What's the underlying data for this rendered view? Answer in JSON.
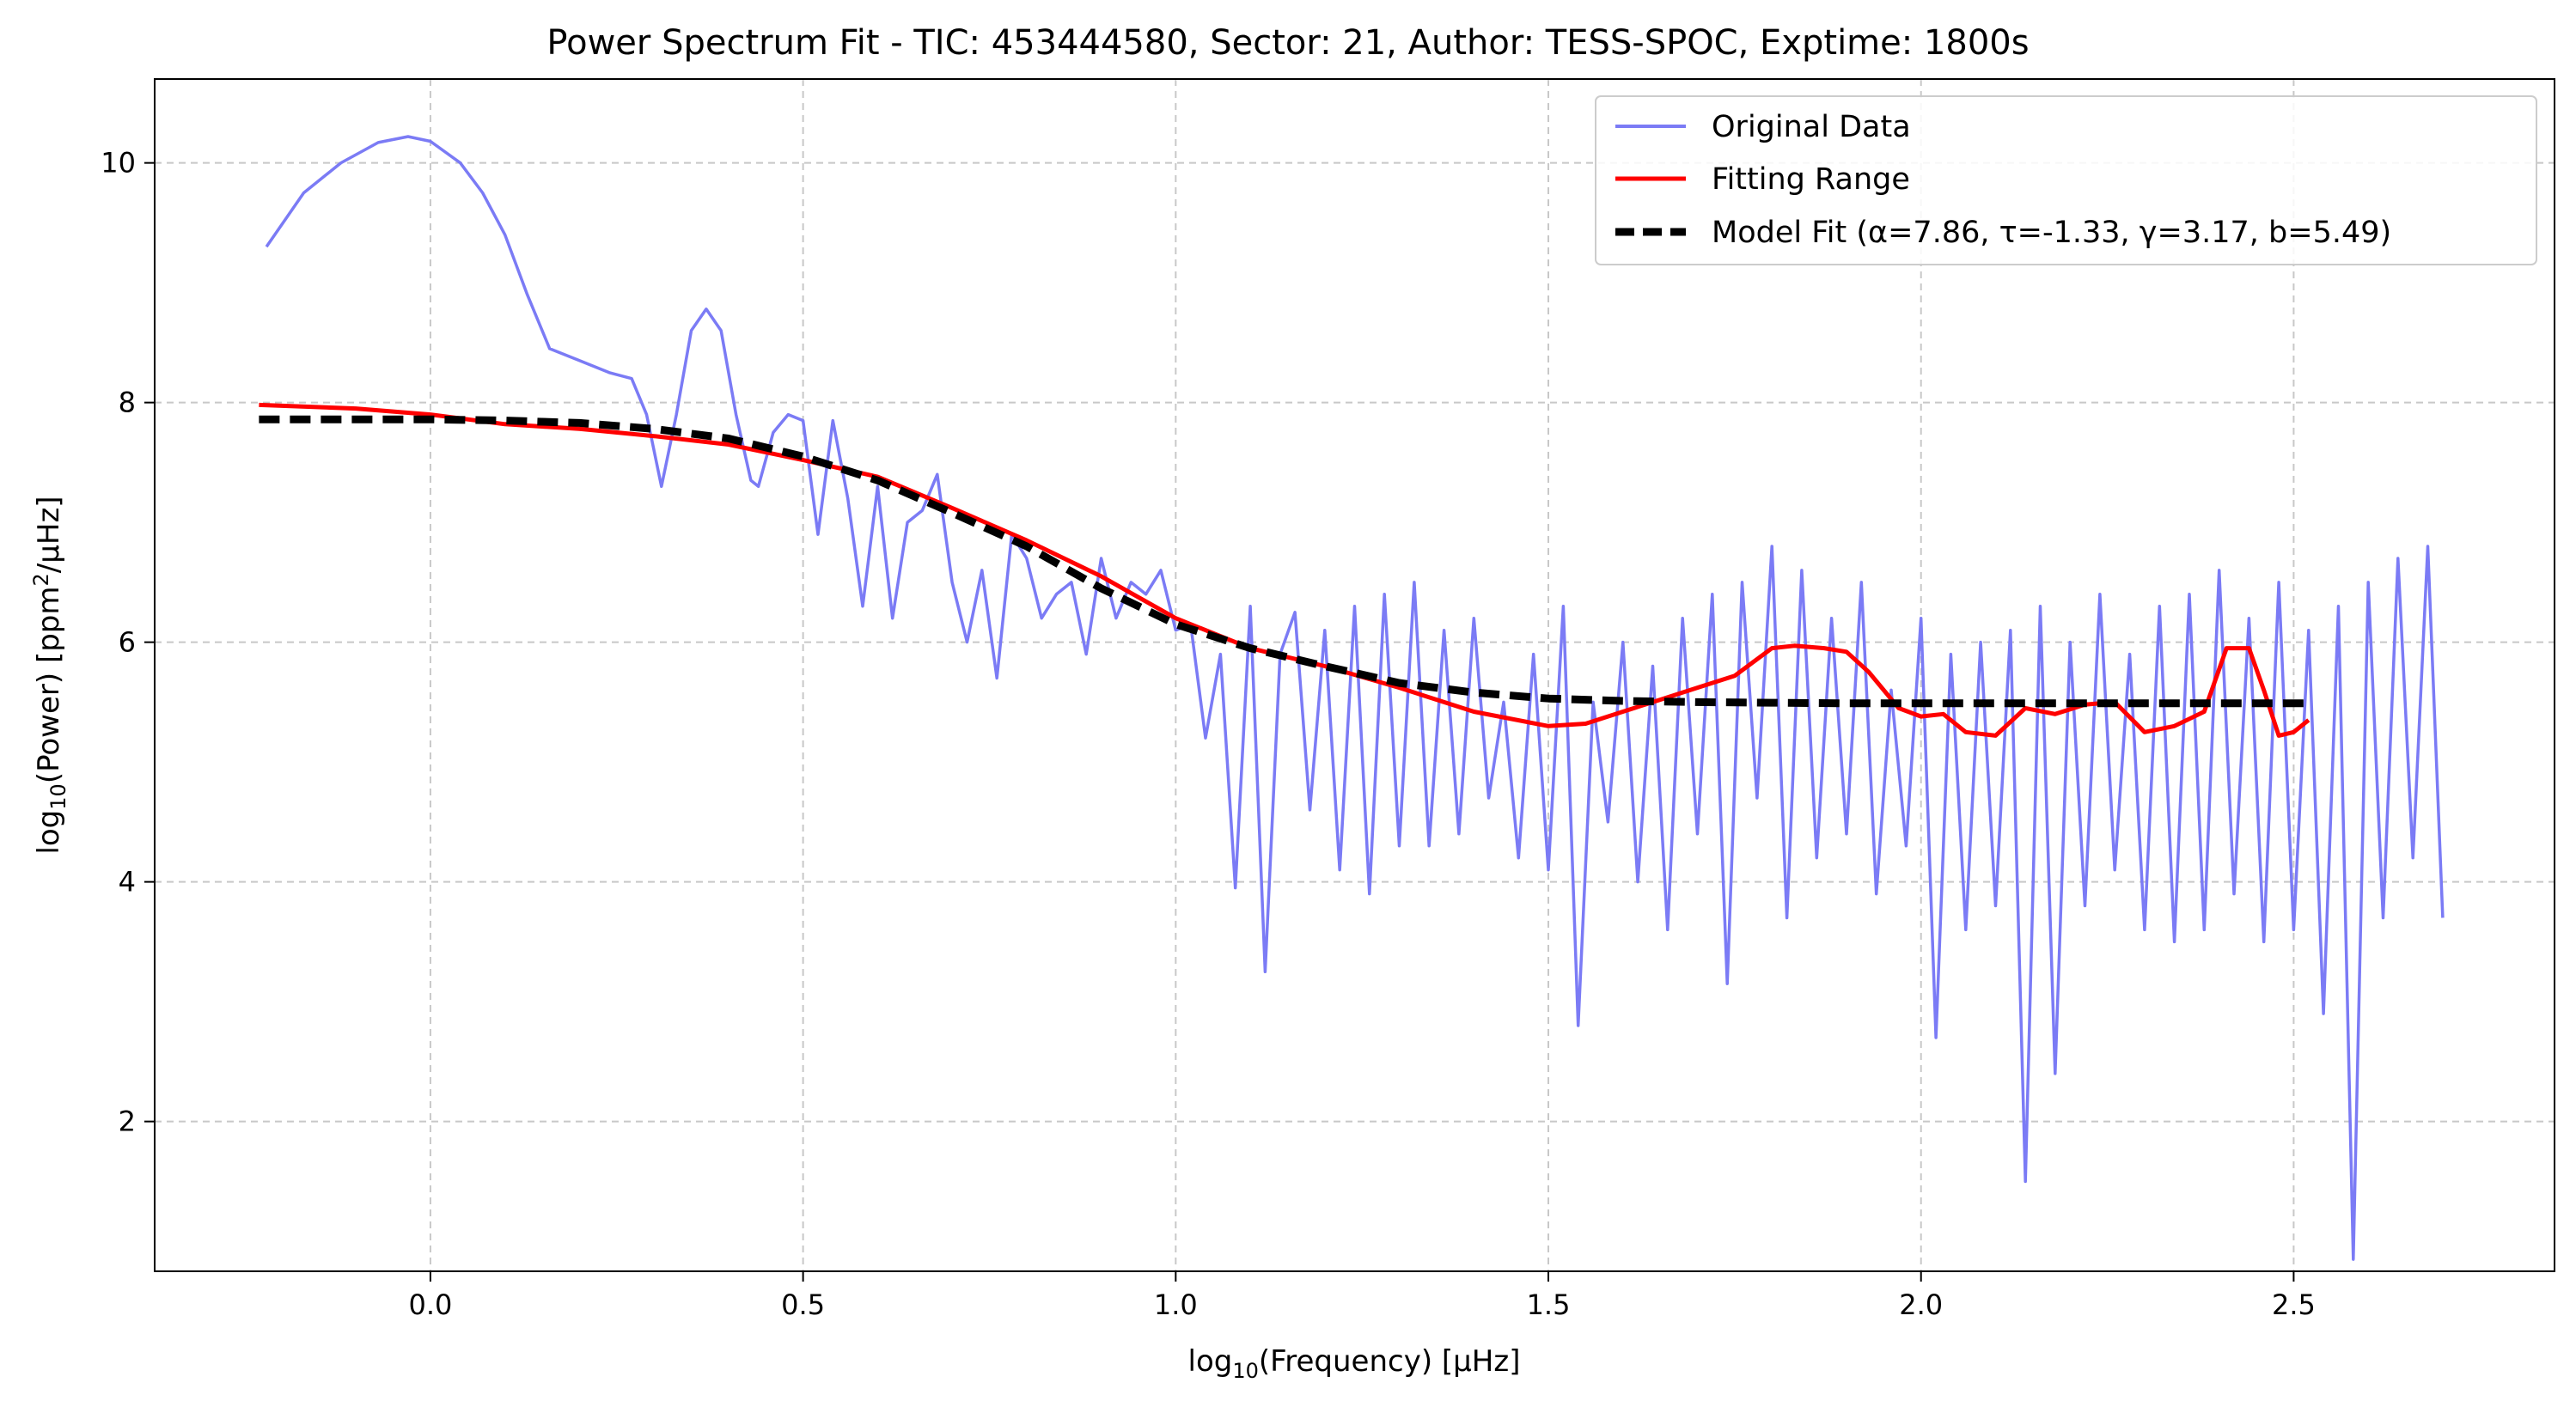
{
  "chart_data": {
    "type": "line",
    "title": "Power Spectrum Fit - TIC: 453444580, Sector: 21, Author: TESS-SPOC, Exptime: 1800s",
    "xlabel_main": "log",
    "xlabel_sub": "10",
    "xlabel_rest": "(Frequency) [μHz]",
    "ylabel_main": "log",
    "ylabel_sub": "10",
    "ylabel_mid": "(Power) [ppm",
    "ylabel_sup": "2",
    "ylabel_rest": "/μHz]",
    "xlim": [
      -0.37,
      2.85
    ],
    "ylim": [
      0.75,
      10.7
    ],
    "xticks": [
      0.0,
      0.5,
      1.0,
      1.5,
      2.0,
      2.5
    ],
    "xtick_labels": [
      "0.0",
      "0.5",
      "1.0",
      "1.5",
      "2.0",
      "2.5"
    ],
    "yticks": [
      2,
      4,
      6,
      8,
      10
    ],
    "ytick_labels": [
      "2",
      "4",
      "6",
      "8",
      "10"
    ],
    "grid": true,
    "legend_position": "top-right",
    "series": [
      {
        "name": "Original Data",
        "color": "#7b7bf5",
        "style": "solid",
        "x": [
          -0.22,
          -0.17,
          -0.12,
          -0.07,
          -0.03,
          0.0,
          0.04,
          0.07,
          0.1,
          0.13,
          0.16,
          0.2,
          0.24,
          0.27,
          0.29,
          0.31,
          0.33,
          0.35,
          0.37,
          0.39,
          0.41,
          0.43,
          0.44,
          0.46,
          0.48,
          0.5,
          0.52,
          0.54,
          0.56,
          0.58,
          0.6,
          0.62,
          0.64,
          0.66,
          0.68,
          0.7,
          0.72,
          0.74,
          0.76,
          0.78,
          0.8,
          0.82,
          0.84,
          0.86,
          0.88,
          0.9,
          0.92,
          0.94,
          0.96,
          0.98,
          1.0,
          1.02,
          1.04,
          1.06,
          1.08,
          1.1,
          1.12,
          1.14,
          1.16,
          1.18,
          1.2,
          1.22,
          1.24,
          1.26,
          1.28,
          1.3,
          1.32,
          1.34,
          1.36,
          1.38,
          1.4,
          1.42,
          1.44,
          1.46,
          1.48,
          1.5,
          1.52,
          1.54,
          1.56,
          1.58,
          1.6,
          1.62,
          1.64,
          1.66,
          1.68,
          1.7,
          1.72,
          1.74,
          1.76,
          1.78,
          1.8,
          1.82,
          1.84,
          1.86,
          1.88,
          1.9,
          1.92,
          1.94,
          1.96,
          1.98,
          2.0,
          2.02,
          2.04,
          2.06,
          2.08,
          2.1,
          2.12,
          2.14,
          2.16,
          2.18,
          2.2,
          2.22,
          2.24,
          2.26,
          2.28,
          2.3,
          2.32,
          2.34,
          2.36,
          2.38,
          2.4,
          2.42,
          2.44,
          2.46,
          2.48,
          2.5,
          2.52,
          2.54,
          2.56,
          2.58,
          2.6,
          2.62,
          2.64,
          2.66,
          2.68,
          2.7
        ],
        "y": [
          9.3,
          9.75,
          10.0,
          10.17,
          10.22,
          10.18,
          10.0,
          9.75,
          9.4,
          8.9,
          8.45,
          8.35,
          8.25,
          8.2,
          7.9,
          7.3,
          7.9,
          8.6,
          8.78,
          8.6,
          7.9,
          7.35,
          7.3,
          7.75,
          7.9,
          7.85,
          6.9,
          7.85,
          7.2,
          6.3,
          7.3,
          6.2,
          7.0,
          7.1,
          7.4,
          6.5,
          6.0,
          6.6,
          5.7,
          6.9,
          6.7,
          6.2,
          6.4,
          6.5,
          5.9,
          6.7,
          6.2,
          6.5,
          6.4,
          6.6,
          6.1,
          6.15,
          5.2,
          5.9,
          3.95,
          6.3,
          3.25,
          5.9,
          6.25,
          4.6,
          6.1,
          4.1,
          6.3,
          3.9,
          6.4,
          4.3,
          6.5,
          4.3,
          6.1,
          4.4,
          6.2,
          4.7,
          5.5,
          4.2,
          5.9,
          4.1,
          6.3,
          2.8,
          5.5,
          4.5,
          6.0,
          4.0,
          5.8,
          3.6,
          6.2,
          4.4,
          6.4,
          3.15,
          6.5,
          4.7,
          6.8,
          3.7,
          6.6,
          4.2,
          6.2,
          4.4,
          6.5,
          3.9,
          5.6,
          4.3,
          6.2,
          2.7,
          5.9,
          3.6,
          6.0,
          3.8,
          6.1,
          1.5,
          6.3,
          2.4,
          6.0,
          3.8,
          6.4,
          4.1,
          5.9,
          3.6,
          6.3,
          3.5,
          6.4,
          3.6,
          6.6,
          3.9,
          6.2,
          3.5,
          6.5,
          3.6,
          6.1,
          2.9,
          6.3,
          0.85,
          6.5,
          3.7,
          6.7,
          4.2,
          6.8,
          3.7
        ]
      },
      {
        "name": "Fitting Range",
        "color": "#ff0000",
        "style": "solid",
        "x": [
          -0.23,
          -0.1,
          0.0,
          0.1,
          0.2,
          0.3,
          0.4,
          0.5,
          0.6,
          0.7,
          0.8,
          0.9,
          1.0,
          1.1,
          1.2,
          1.3,
          1.4,
          1.5,
          1.55,
          1.6,
          1.65,
          1.7,
          1.75,
          1.8,
          1.83,
          1.87,
          1.9,
          1.93,
          1.97,
          2.0,
          2.03,
          2.06,
          2.1,
          2.14,
          2.18,
          2.22,
          2.26,
          2.3,
          2.34,
          2.38,
          2.41,
          2.44,
          2.46,
          2.48,
          2.5,
          2.52
        ],
        "y": [
          7.98,
          7.95,
          7.9,
          7.82,
          7.78,
          7.72,
          7.65,
          7.52,
          7.38,
          7.12,
          6.85,
          6.55,
          6.2,
          5.95,
          5.8,
          5.62,
          5.42,
          5.3,
          5.32,
          5.42,
          5.52,
          5.62,
          5.72,
          5.95,
          5.97,
          5.95,
          5.92,
          5.75,
          5.45,
          5.38,
          5.4,
          5.25,
          5.22,
          5.45,
          5.4,
          5.48,
          5.5,
          5.25,
          5.3,
          5.42,
          5.95,
          5.95,
          5.6,
          5.22,
          5.25,
          5.35
        ]
      },
      {
        "name": "Model Fit (α=7.86, τ=-1.33, γ=3.17, b=5.49)",
        "color": "#000000",
        "style": "dashed",
        "x": [
          -0.23,
          -0.1,
          0.0,
          0.1,
          0.2,
          0.3,
          0.4,
          0.5,
          0.6,
          0.7,
          0.8,
          0.9,
          1.0,
          1.1,
          1.2,
          1.3,
          1.4,
          1.5,
          1.6,
          1.7,
          1.8,
          1.9,
          2.0,
          2.1,
          2.2,
          2.3,
          2.4,
          2.52
        ],
        "y": [
          7.86,
          7.86,
          7.86,
          7.85,
          7.83,
          7.78,
          7.7,
          7.55,
          7.35,
          7.08,
          6.8,
          6.45,
          6.15,
          5.95,
          5.8,
          5.66,
          5.58,
          5.53,
          5.51,
          5.5,
          5.495,
          5.49,
          5.49,
          5.49,
          5.49,
          5.49,
          5.49,
          5.49
        ]
      }
    ]
  }
}
